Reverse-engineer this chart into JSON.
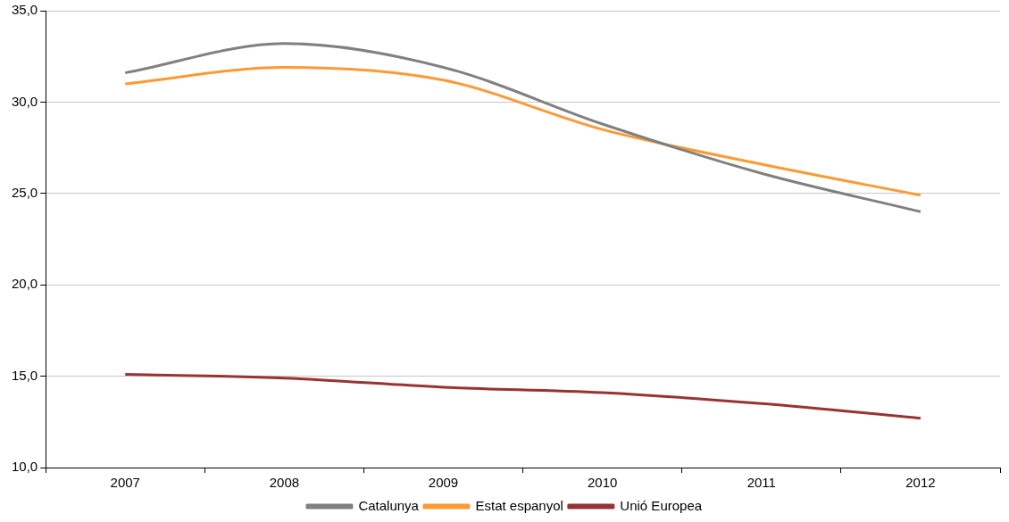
{
  "chart_data": {
    "type": "line",
    "categories": [
      "2007",
      "2008",
      "2009",
      "2010",
      "2011",
      "2012"
    ],
    "series": [
      {
        "name": "Catalunya",
        "color": "#808080",
        "values": [
          31.6,
          33.2,
          31.9,
          28.8,
          26.1,
          24.0
        ]
      },
      {
        "name": "Estat espanyol",
        "color": "#ff9933",
        "values": [
          31.0,
          31.9,
          31.2,
          28.5,
          26.6,
          24.9
        ]
      },
      {
        "name": "Unió Europea",
        "color": "#993333",
        "values": [
          15.1,
          14.9,
          14.4,
          14.1,
          13.5,
          12.7
        ]
      }
    ],
    "ylim": [
      10,
      35
    ],
    "yticks": [
      {
        "value": 10,
        "label": "10,0"
      },
      {
        "value": 15,
        "label": "15,0"
      },
      {
        "value": 20,
        "label": "20,0"
      },
      {
        "value": 25,
        "label": "25,0"
      },
      {
        "value": 30,
        "label": "30,0"
      },
      {
        "value": 35,
        "label": "35,0"
      }
    ],
    "grid": "y",
    "legend": "bottom",
    "marker": "none",
    "line_style": "solid"
  }
}
